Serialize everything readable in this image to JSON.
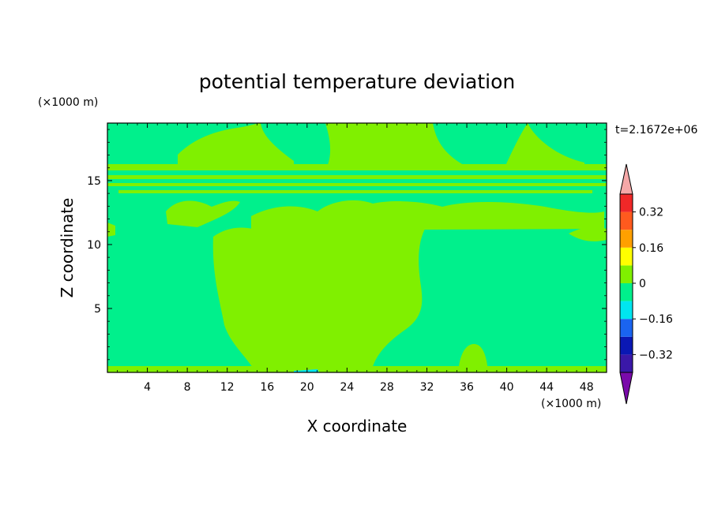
{
  "chart_data": {
    "type": "contour",
    "title": "potential temperature deviation",
    "xlabel": "X coordinate",
    "ylabel": "Z coordinate",
    "x_unit": "(×1000 m)",
    "y_unit": "(×1000 m)",
    "time_label": "t=2.1672e+06",
    "xlim": [
      0,
      50
    ],
    "ylim": [
      0,
      19.5
    ],
    "x_ticks": [
      4,
      8,
      12,
      16,
      20,
      24,
      28,
      32,
      36,
      40,
      44,
      48
    ],
    "y_ticks": [
      5,
      10,
      15
    ],
    "colorbar": {
      "levels": [
        -0.4,
        -0.32,
        -0.24,
        -0.16,
        -0.08,
        0,
        0.08,
        0.16,
        0.24,
        0.32,
        0.4
      ],
      "colors": [
        "#3a18a8",
        "#0a18b4",
        "#1a64f0",
        "#00e6f0",
        "#00f08c",
        "#80f000",
        "#ffff00",
        "#ffa000",
        "#ff5a1e",
        "#f02828"
      ],
      "under_color": "#7a0aaa",
      "over_color": "#f5a8a8",
      "labels": [
        {
          "value": 0.32,
          "text": "0.32"
        },
        {
          "value": 0.16,
          "text": "0.16"
        },
        {
          "value": 0,
          "text": "0"
        },
        {
          "value": -0.16,
          "text": "−0.16"
        },
        {
          "value": -0.32,
          "text": "−0.32"
        }
      ]
    },
    "regions": [
      {
        "name": "background",
        "level": "-0.08 to 0",
        "color": "#00f08c"
      },
      {
        "name": "central column",
        "level": "0 to 0.08",
        "color": "#80f000",
        "x_range": [
          11,
          32
        ],
        "z_range": [
          0.5,
          11.5
        ]
      },
      {
        "name": "upper bands",
        "level": "0 to 0.08",
        "color": "#80f000",
        "z_range": [
          11.5,
          16.5
        ]
      },
      {
        "name": "top lobes",
        "level": "0 to 0.08",
        "color": "#80f000",
        "z_range": [
          16.5,
          19.5
        ]
      }
    ]
  }
}
